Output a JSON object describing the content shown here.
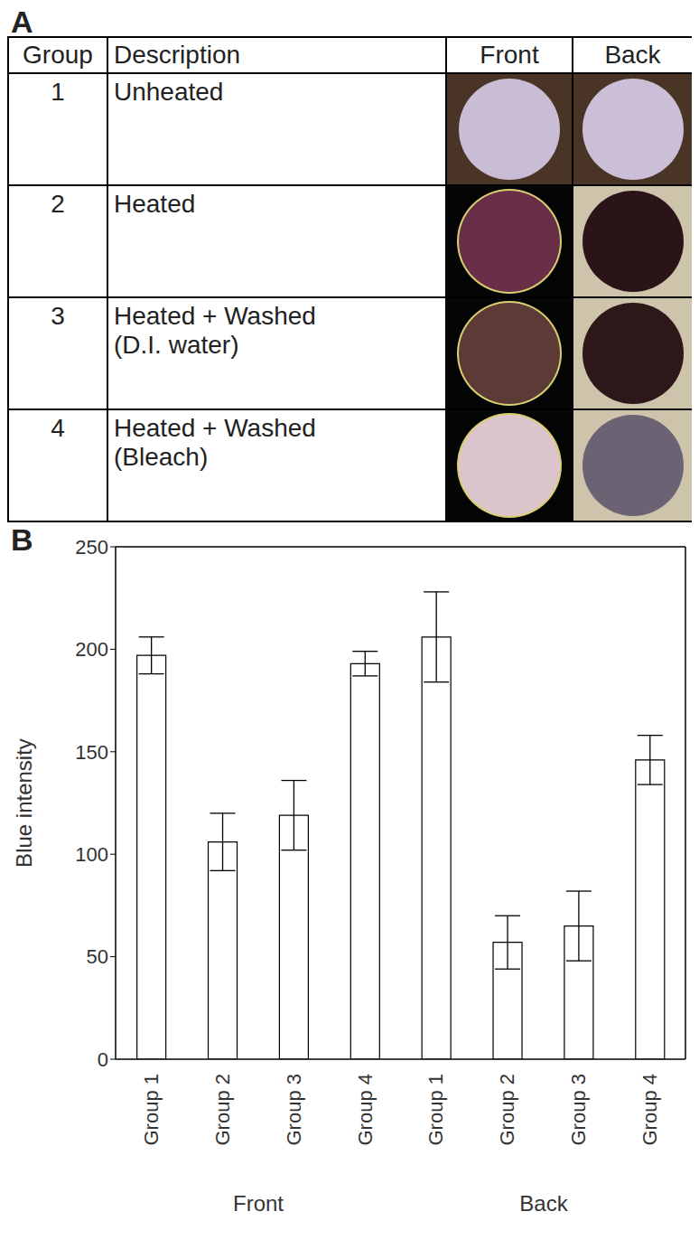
{
  "panel_a": {
    "label": "A",
    "table": {
      "header": [
        "Group",
        "Description",
        "Front",
        "Back"
      ],
      "rows": [
        [
          "1",
          "Unheated"
        ],
        [
          "2",
          "Heated"
        ],
        [
          "3",
          "Heated + Washed\n(D.I. water)"
        ],
        [
          "4",
          "Heated + Washed\n(Bleach)"
        ]
      ]
    }
  },
  "chart_data": {
    "panel_label": "B",
    "type": "bar",
    "categories": [
      "Group 1",
      "Group 2",
      "Group 3",
      "Group 4",
      "Group 1",
      "Group 2",
      "Group 3",
      "Group 4"
    ],
    "values": [
      197,
      106,
      119,
      193,
      206,
      57,
      65,
      146
    ],
    "errors": [
      9,
      14,
      17,
      6,
      22,
      13,
      17,
      12
    ],
    "x_groups": [
      {
        "label": "Front",
        "count": 4
      },
      {
        "label": "Back",
        "count": 4
      }
    ],
    "ylabel": "Blue intensity",
    "ylim": [
      0,
      250
    ],
    "yticks": [
      0,
      50,
      100,
      150,
      200,
      250
    ],
    "color": "#ffffff",
    "grid": false
  }
}
